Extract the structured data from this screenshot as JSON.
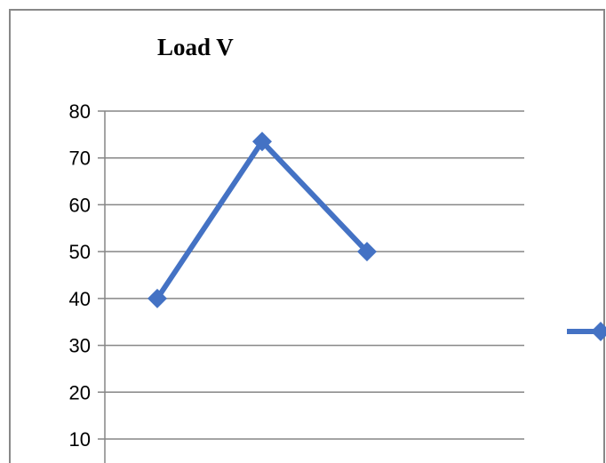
{
  "chart_data": {
    "type": "line",
    "title": "Load V",
    "xlabel": "",
    "ylabel": "",
    "x": [
      1,
      2,
      3
    ],
    "ylim": [
      10,
      80
    ],
    "yticks": [
      10,
      20,
      30,
      40,
      50,
      60,
      70,
      80
    ],
    "grid": true,
    "legend_position": "right",
    "series": [
      {
        "values": [
          40,
          73.5,
          50
        ],
        "color": "#4472C4",
        "marker": "diamond"
      }
    ]
  }
}
